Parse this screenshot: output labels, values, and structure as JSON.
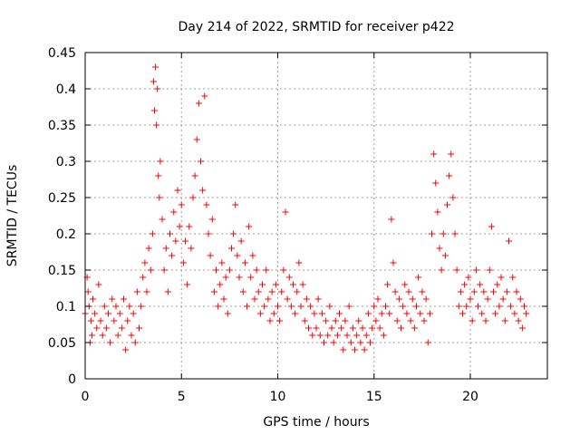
{
  "chart_data": {
    "type": "scatter",
    "title": "Day 214 of 2022, SRMTID for receiver p422",
    "xlabel": "GPS time / hours",
    "ylabel": "SRMTID / TECUs",
    "xlim": [
      0,
      24
    ],
    "ylim": [
      0,
      0.45
    ],
    "xticks": [
      0,
      5,
      10,
      15,
      20
    ],
    "xtick_labels": [
      "0",
      "5",
      "10",
      "15",
      "20"
    ],
    "yticks": [
      0,
      0.05,
      0.1,
      0.15,
      0.2,
      0.25,
      0.3,
      0.35,
      0.4,
      0.45
    ],
    "ytick_labels": [
      "0",
      "0.05",
      "0.1",
      "0.15",
      "0.2",
      "0.25",
      "0.3",
      "0.35",
      "0.4",
      "0.45"
    ],
    "grid": true,
    "marker": "+",
    "color": "#ff0000",
    "series": [
      {
        "name": "p422",
        "points": [
          [
            0.0,
            0.09
          ],
          [
            0.1,
            0.14
          ],
          [
            0.15,
            0.12
          ],
          [
            0.2,
            0.1
          ],
          [
            0.25,
            0.05
          ],
          [
            0.3,
            0.08
          ],
          [
            0.35,
            0.06
          ],
          [
            0.4,
            0.11
          ],
          [
            0.5,
            0.09
          ],
          [
            0.6,
            0.07
          ],
          [
            0.7,
            0.13
          ],
          [
            0.8,
            0.08
          ],
          [
            0.9,
            0.06
          ],
          [
            1.0,
            0.1
          ],
          [
            1.1,
            0.07
          ],
          [
            1.2,
            0.09
          ],
          [
            1.3,
            0.05
          ],
          [
            1.4,
            0.11
          ],
          [
            1.5,
            0.08
          ],
          [
            1.6,
            0.1
          ],
          [
            1.7,
            0.06
          ],
          [
            1.8,
            0.09
          ],
          [
            1.9,
            0.07
          ],
          [
            2.0,
            0.11
          ],
          [
            2.1,
            0.04
          ],
          [
            2.2,
            0.08
          ],
          [
            2.3,
            0.1
          ],
          [
            2.4,
            0.06
          ],
          [
            2.5,
            0.09
          ],
          [
            2.6,
            0.05
          ],
          [
            2.7,
            0.12
          ],
          [
            2.8,
            0.07
          ],
          [
            2.9,
            0.1
          ],
          [
            3.0,
            0.14
          ],
          [
            3.1,
            0.16
          ],
          [
            3.2,
            0.12
          ],
          [
            3.3,
            0.18
          ],
          [
            3.4,
            0.15
          ],
          [
            3.5,
            0.2
          ],
          [
            3.55,
            0.41
          ],
          [
            3.6,
            0.37
          ],
          [
            3.65,
            0.43
          ],
          [
            3.7,
            0.35
          ],
          [
            3.75,
            0.4
          ],
          [
            3.8,
            0.28
          ],
          [
            3.85,
            0.25
          ],
          [
            3.9,
            0.3
          ],
          [
            4.0,
            0.22
          ],
          [
            4.1,
            0.15
          ],
          [
            4.2,
            0.18
          ],
          [
            4.3,
            0.12
          ],
          [
            4.4,
            0.2
          ],
          [
            4.5,
            0.17
          ],
          [
            4.6,
            0.23
          ],
          [
            4.7,
            0.19
          ],
          [
            4.8,
            0.26
          ],
          [
            4.9,
            0.21
          ],
          [
            5.0,
            0.24
          ],
          [
            5.1,
            0.16
          ],
          [
            5.2,
            0.19
          ],
          [
            5.3,
            0.13
          ],
          [
            5.4,
            0.21
          ],
          [
            5.5,
            0.18
          ],
          [
            5.6,
            0.25
          ],
          [
            5.7,
            0.28
          ],
          [
            5.8,
            0.33
          ],
          [
            5.9,
            0.38
          ],
          [
            6.0,
            0.3
          ],
          [
            6.1,
            0.26
          ],
          [
            6.2,
            0.39
          ],
          [
            6.3,
            0.24
          ],
          [
            6.4,
            0.2
          ],
          [
            6.5,
            0.17
          ],
          [
            6.6,
            0.22
          ],
          [
            6.7,
            0.12
          ],
          [
            6.8,
            0.15
          ],
          [
            6.9,
            0.1
          ],
          [
            7.0,
            0.13
          ],
          [
            7.1,
            0.16
          ],
          [
            7.2,
            0.11
          ],
          [
            7.3,
            0.14
          ],
          [
            7.4,
            0.09
          ],
          [
            7.5,
            0.15
          ],
          [
            7.6,
            0.18
          ],
          [
            7.7,
            0.2
          ],
          [
            7.8,
            0.24
          ],
          [
            7.9,
            0.17
          ],
          [
            8.0,
            0.14
          ],
          [
            8.1,
            0.19
          ],
          [
            8.2,
            0.12
          ],
          [
            8.3,
            0.16
          ],
          [
            8.4,
            0.1
          ],
          [
            8.5,
            0.21
          ],
          [
            8.6,
            0.14
          ],
          [
            8.7,
            0.17
          ],
          [
            8.8,
            0.11
          ],
          [
            8.9,
            0.15
          ],
          [
            9.0,
            0.12
          ],
          [
            9.1,
            0.09
          ],
          [
            9.2,
            0.13
          ],
          [
            9.3,
            0.1
          ],
          [
            9.4,
            0.15
          ],
          [
            9.5,
            0.11
          ],
          [
            9.6,
            0.08
          ],
          [
            9.7,
            0.12
          ],
          [
            9.8,
            0.09
          ],
          [
            9.9,
            0.13
          ],
          [
            10.0,
            0.1
          ],
          [
            10.1,
            0.08
          ],
          [
            10.2,
            0.12
          ],
          [
            10.3,
            0.15
          ],
          [
            10.4,
            0.23
          ],
          [
            10.5,
            0.11
          ],
          [
            10.6,
            0.14
          ],
          [
            10.7,
            0.1
          ],
          [
            10.8,
            0.13
          ],
          [
            10.9,
            0.09
          ],
          [
            11.0,
            0.12
          ],
          [
            11.1,
            0.16
          ],
          [
            11.2,
            0.1
          ],
          [
            11.3,
            0.13
          ],
          [
            11.4,
            0.08
          ],
          [
            11.5,
            0.11
          ],
          [
            11.6,
            0.07
          ],
          [
            11.7,
            0.1
          ],
          [
            11.8,
            0.06
          ],
          [
            11.9,
            0.09
          ],
          [
            12.0,
            0.07
          ],
          [
            12.1,
            0.11
          ],
          [
            12.2,
            0.06
          ],
          [
            12.3,
            0.09
          ],
          [
            12.4,
            0.05
          ],
          [
            12.5,
            0.08
          ],
          [
            12.6,
            0.06
          ],
          [
            12.7,
            0.1
          ],
          [
            12.8,
            0.07
          ],
          [
            12.9,
            0.05
          ],
          [
            13.0,
            0.08
          ],
          [
            13.1,
            0.06
          ],
          [
            13.2,
            0.09
          ],
          [
            13.3,
            0.07
          ],
          [
            13.4,
            0.04
          ],
          [
            13.5,
            0.08
          ],
          [
            13.6,
            0.06
          ],
          [
            13.7,
            0.1
          ],
          [
            13.8,
            0.05
          ],
          [
            13.9,
            0.07
          ],
          [
            14.0,
            0.04
          ],
          [
            14.1,
            0.06
          ],
          [
            14.2,
            0.08
          ],
          [
            14.3,
            0.05
          ],
          [
            14.4,
            0.07
          ],
          [
            14.5,
            0.04
          ],
          [
            14.6,
            0.06
          ],
          [
            14.7,
            0.09
          ],
          [
            14.8,
            0.05
          ],
          [
            14.9,
            0.07
          ],
          [
            15.0,
            0.1
          ],
          [
            15.1,
            0.08
          ],
          [
            15.2,
            0.11
          ],
          [
            15.3,
            0.07
          ],
          [
            15.4,
            0.09
          ],
          [
            15.5,
            0.06
          ],
          [
            15.6,
            0.1
          ],
          [
            15.7,
            0.13
          ],
          [
            15.8,
            0.09
          ],
          [
            15.9,
            0.22
          ],
          [
            16.0,
            0.16
          ],
          [
            16.1,
            0.12
          ],
          [
            16.2,
            0.08
          ],
          [
            16.3,
            0.11
          ],
          [
            16.4,
            0.07
          ],
          [
            16.5,
            0.1
          ],
          [
            16.6,
            0.13
          ],
          [
            16.7,
            0.09
          ],
          [
            16.8,
            0.12
          ],
          [
            16.9,
            0.08
          ],
          [
            17.0,
            0.11
          ],
          [
            17.1,
            0.07
          ],
          [
            17.2,
            0.1
          ],
          [
            17.3,
            0.14
          ],
          [
            17.4,
            0.09
          ],
          [
            17.5,
            0.12
          ],
          [
            17.6,
            0.08
          ],
          [
            17.7,
            0.11
          ],
          [
            17.8,
            0.05
          ],
          [
            17.9,
            0.09
          ],
          [
            18.0,
            0.2
          ],
          [
            18.1,
            0.31
          ],
          [
            18.2,
            0.27
          ],
          [
            18.3,
            0.23
          ],
          [
            18.4,
            0.18
          ],
          [
            18.5,
            0.15
          ],
          [
            18.6,
            0.2
          ],
          [
            18.7,
            0.17
          ],
          [
            18.8,
            0.24
          ],
          [
            18.9,
            0.28
          ],
          [
            19.0,
            0.31
          ],
          [
            19.1,
            0.25
          ],
          [
            19.2,
            0.2
          ],
          [
            19.3,
            0.15
          ],
          [
            19.4,
            0.1
          ],
          [
            19.5,
            0.12
          ],
          [
            19.6,
            0.09
          ],
          [
            19.7,
            0.13
          ],
          [
            19.8,
            0.1
          ],
          [
            19.9,
            0.14
          ],
          [
            20.0,
            0.11
          ],
          [
            20.1,
            0.08
          ],
          [
            20.2,
            0.12
          ],
          [
            20.3,
            0.15
          ],
          [
            20.4,
            0.1
          ],
          [
            20.5,
            0.13
          ],
          [
            20.6,
            0.09
          ],
          [
            20.7,
            0.12
          ],
          [
            20.8,
            0.08
          ],
          [
            20.9,
            0.11
          ],
          [
            21.0,
            0.15
          ],
          [
            21.1,
            0.21
          ],
          [
            21.2,
            0.12
          ],
          [
            21.3,
            0.09
          ],
          [
            21.4,
            0.13
          ],
          [
            21.5,
            0.1
          ],
          [
            21.6,
            0.14
          ],
          [
            21.7,
            0.11
          ],
          [
            21.8,
            0.08
          ],
          [
            21.9,
            0.12
          ],
          [
            22.0,
            0.19
          ],
          [
            22.1,
            0.1
          ],
          [
            22.2,
            0.14
          ],
          [
            22.3,
            0.09
          ],
          [
            22.4,
            0.12
          ],
          [
            22.5,
            0.08
          ],
          [
            22.6,
            0.11
          ],
          [
            22.7,
            0.07
          ],
          [
            22.8,
            0.1
          ],
          [
            22.9,
            0.09
          ]
        ]
      }
    ]
  }
}
